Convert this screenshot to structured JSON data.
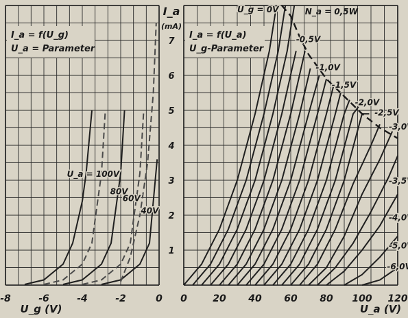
{
  "chart_data": [
    {
      "type": "line",
      "panel": "left",
      "annotation_lines": [
        "I_a = f(U_g)",
        "U_a = Parameter"
      ],
      "xlabel": "U_g (V)",
      "ylabel": "I_a (mA)",
      "xlim": [
        -8,
        0
      ],
      "ylim": [
        0,
        8
      ],
      "xticks": [
        "-8",
        "-6",
        "-4",
        "-2",
        "0"
      ],
      "grid": true,
      "series": [
        {
          "name": "U_a = 100V",
          "line_style": "solid",
          "x": [
            -7.0,
            -6.0,
            -5.0,
            -4.5,
            -4.0,
            -3.8,
            -3.5
          ],
          "y": [
            0.02,
            0.15,
            0.6,
            1.2,
            2.4,
            3.2,
            5.0
          ]
        },
        {
          "name": "80V",
          "line_style": "dashed",
          "x": [
            -6.0,
            -5.0,
            -4.0,
            -3.5,
            -3.2,
            -3.0,
            -2.8
          ],
          "y": [
            0.02,
            0.15,
            0.6,
            1.2,
            2.4,
            3.2,
            5.0
          ]
        },
        {
          "name": "60V",
          "line_style": "solid",
          "x": [
            -5.0,
            -4.0,
            -3.0,
            -2.5,
            -2.2,
            -2.0,
            -1.8
          ],
          "y": [
            0.02,
            0.15,
            0.6,
            1.2,
            2.4,
            3.2,
            5.0
          ]
        },
        {
          "name": "40V",
          "line_style": "dashed",
          "x": [
            -4.0,
            -3.0,
            -2.0,
            -1.5,
            -1.2,
            -1.0,
            -0.8
          ],
          "y": [
            0.02,
            0.15,
            0.6,
            1.2,
            2.4,
            3.2,
            5.0
          ]
        },
        {
          "name": "",
          "line_style": "solid",
          "x": [
            -3.0,
            -2.0,
            -1.0,
            -0.5,
            -0.3,
            -0.1
          ],
          "y": [
            0.02,
            0.15,
            0.6,
            1.2,
            2.4,
            3.6
          ]
        },
        {
          "name": "",
          "line_style": "dashed",
          "x": [
            -2.0,
            -1.5,
            -1.0,
            -0.6,
            -0.3,
            -0.15
          ],
          "y": [
            0.1,
            0.8,
            2.0,
            3.5,
            5.5,
            7.5
          ]
        }
      ],
      "labels": [
        {
          "text": "U_a = 100V",
          "x": -4.8,
          "y": 3.1
        },
        {
          "text": "80V",
          "x": -2.55,
          "y": 2.6
        },
        {
          "text": "60V",
          "x": -1.9,
          "y": 2.4
        },
        {
          "text": "40V",
          "x": -0.95,
          "y": 2.05
        }
      ]
    },
    {
      "type": "line",
      "panel": "right",
      "y_axis_title": "I_a",
      "y_axis_unit": "(mA)",
      "yticks": [
        "1",
        "2",
        "3",
        "4",
        "5",
        "6",
        "7"
      ],
      "annotation_lines": [
        "I_a = f(U_a)",
        "U_g-Parameter"
      ],
      "xlabel": "U_a (V)",
      "ylabel": "I_a (mA)",
      "xlim": [
        0,
        120
      ],
      "ylim": [
        0,
        8
      ],
      "xticks": [
        "0",
        "20",
        "40",
        "60",
        "80",
        "100",
        "120"
      ],
      "grid": true,
      "power_curve": {
        "label": "N_a = 0,5W",
        "x": [
          55,
          60,
          65,
          70,
          80,
          90,
          100,
          110,
          120
        ],
        "y": [
          8.0,
          7.7,
          7.1,
          6.6,
          5.9,
          5.4,
          4.9,
          4.5,
          4.2
        ]
      },
      "series": [
        {
          "name": "U_g = 0V",
          "x": [
            0,
            10,
            20,
            30,
            40,
            48,
            52
          ],
          "y": [
            0,
            0.6,
            1.6,
            3.0,
            4.9,
            6.7,
            8.0
          ]
        },
        {
          "name": "-0,5V",
          "x": [
            5,
            15,
            25,
            35,
            45,
            53,
            57
          ],
          "y": [
            0,
            0.6,
            1.6,
            3.0,
            4.9,
            6.7,
            8.0
          ]
        },
        {
          "name": "-1,0V",
          "x": [
            10,
            20,
            30,
            40,
            50,
            58,
            62
          ],
          "y": [
            0,
            0.6,
            1.6,
            3.0,
            4.9,
            6.7,
            8.0
          ]
        },
        {
          "name": "-1,5V",
          "x": [
            15,
            25,
            35,
            45,
            55,
            63
          ],
          "y": [
            0,
            0.6,
            1.6,
            3.0,
            4.9,
            6.7
          ]
        },
        {
          "name": "-2,0V",
          "x": [
            20,
            30,
            40,
            50,
            60,
            68
          ],
          "y": [
            0,
            0.6,
            1.6,
            3.0,
            4.9,
            6.7
          ]
        },
        {
          "name": "-2,5V",
          "x": [
            25,
            35,
            45,
            55,
            65,
            71
          ],
          "y": [
            0,
            0.6,
            1.6,
            3.0,
            4.9,
            6.2
          ]
        },
        {
          "name": "-3,0V",
          "x": [
            30,
            40,
            50,
            60,
            70,
            76
          ],
          "y": [
            0,
            0.6,
            1.6,
            3.0,
            4.9,
            6.0
          ]
        },
        {
          "name": "",
          "x": [
            35,
            45,
            55,
            65,
            75,
            80
          ],
          "y": [
            0,
            0.6,
            1.6,
            3.0,
            4.9,
            5.9
          ]
        },
        {
          "name": "",
          "x": [
            40,
            50,
            60,
            70,
            80,
            84
          ],
          "y": [
            0,
            0.6,
            1.6,
            3.0,
            4.9,
            5.7
          ]
        },
        {
          "name": "",
          "x": [
            45,
            55,
            65,
            75,
            85,
            88
          ],
          "y": [
            0,
            0.6,
            1.6,
            3.0,
            4.9,
            5.5
          ]
        },
        {
          "name": "",
          "x": [
            50,
            60,
            70,
            80,
            90,
            93
          ],
          "y": [
            0,
            0.6,
            1.6,
            3.0,
            4.9,
            5.3
          ]
        },
        {
          "name": "",
          "x": [
            55,
            65,
            75,
            85,
            95,
            98
          ],
          "y": [
            0,
            0.6,
            1.6,
            3.0,
            4.9,
            5.1
          ]
        },
        {
          "name": "",
          "x": [
            60,
            70,
            80,
            90,
            100,
            104
          ],
          "y": [
            0,
            0.6,
            1.6,
            3.0,
            4.9,
            4.9
          ]
        },
        {
          "name": "-3,5V",
          "x": [
            65,
            75,
            85,
            95,
            105,
            110
          ],
          "y": [
            0,
            0.6,
            1.6,
            2.9,
            4.0,
            4.6
          ]
        },
        {
          "name": "",
          "x": [
            70,
            80,
            90,
            100,
            110,
            117
          ],
          "y": [
            0,
            0.5,
            1.4,
            2.6,
            3.6,
            4.4
          ]
        },
        {
          "name": "-4,0V",
          "x": [
            75,
            85,
            95,
            105,
            115,
            120
          ],
          "y": [
            0,
            0.5,
            1.2,
            2.1,
            3.1,
            3.7
          ]
        },
        {
          "name": "",
          "x": [
            80,
            90,
            100,
            110,
            120
          ],
          "y": [
            0,
            0.4,
            1.0,
            1.7,
            2.6
          ]
        },
        {
          "name": "-5,0V",
          "x": [
            90,
            100,
            110,
            120
          ],
          "y": [
            0,
            0.3,
            0.8,
            1.4
          ]
        },
        {
          "name": "-6,0V",
          "x": [
            100,
            110,
            120
          ],
          "y": [
            0,
            0.15,
            0.5
          ]
        }
      ],
      "labels": [
        {
          "text": "U_g = 0V",
          "x": 30,
          "y": 7.8
        },
        {
          "text": "-0,5V",
          "x": 63,
          "y": 6.95
        },
        {
          "text": "-1,0V",
          "x": 74,
          "y": 6.15
        },
        {
          "text": "-1,5V",
          "x": 83,
          "y": 5.65
        },
        {
          "text": "-2,0V",
          "x": 96,
          "y": 5.15
        },
        {
          "text": "-2,5V",
          "x": 107,
          "y": 4.85
        },
        {
          "text": "-3,0V",
          "x": 115,
          "y": 4.45
        },
        {
          "text": "-3,5V",
          "x": 115,
          "y": 2.9
        },
        {
          "text": "-4,0V",
          "x": 115,
          "y": 1.85
        },
        {
          "text": "-5,0V",
          "x": 115,
          "y": 1.05
        },
        {
          "text": "-6,0V",
          "x": 114,
          "y": 0.45
        }
      ]
    }
  ]
}
